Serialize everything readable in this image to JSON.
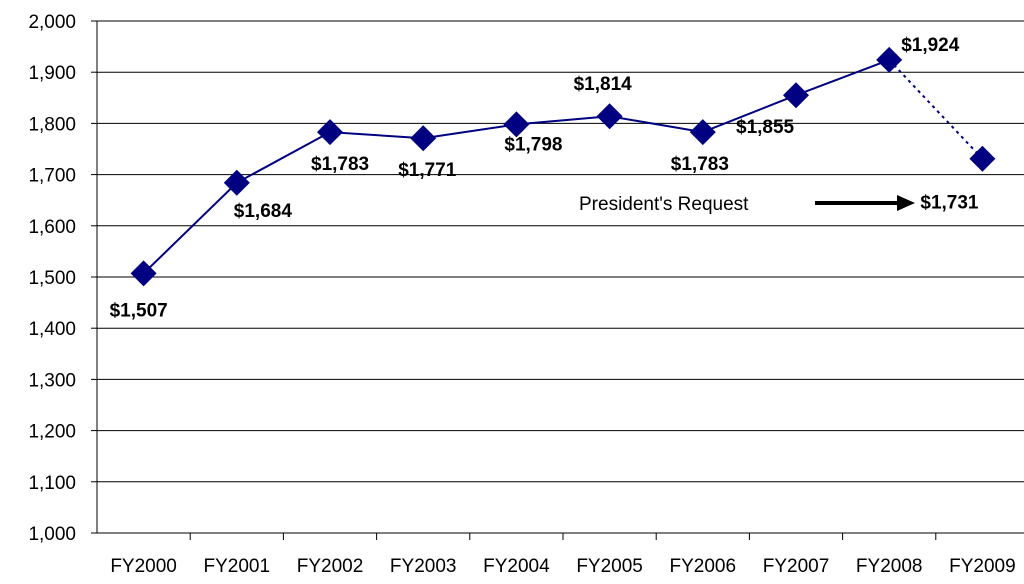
{
  "chart_data": {
    "type": "line",
    "title": "",
    "xlabel": "",
    "ylabel": "",
    "categories": [
      "FY2000",
      "FY2001",
      "FY2002",
      "FY2003",
      "FY2004",
      "FY2005",
      "FY2006",
      "FY2007",
      "FY2008",
      "FY2009"
    ],
    "values": [
      1507,
      1684,
      1783,
      1771,
      1798,
      1814,
      1783,
      1855,
      1924,
      1731
    ],
    "data_labels": [
      "$1,507",
      "$1,684",
      "$1,783",
      "$1,771",
      "$1,798",
      "$1,814",
      "$1,783",
      "$1,855",
      "$1,924",
      "$1,731"
    ],
    "ylim": [
      1000,
      2000
    ],
    "yticks": [
      1000,
      1100,
      1200,
      1300,
      1400,
      1500,
      1600,
      1700,
      1800,
      1900,
      2000
    ],
    "ytick_labels": [
      "1,000",
      "1,100",
      "1,200",
      "1,300",
      "1,400",
      "1,500",
      "1,600",
      "1,700",
      "1,800",
      "1,900",
      "2,000"
    ],
    "grid": true,
    "legend": "none",
    "requested_segment": "FY2008 to FY2009 shown dotted",
    "annotation": {
      "text": "President's Request",
      "points_to": "FY2009"
    },
    "colors": {
      "series": "#000080",
      "grid": "#000000",
      "text": "#000000"
    }
  }
}
